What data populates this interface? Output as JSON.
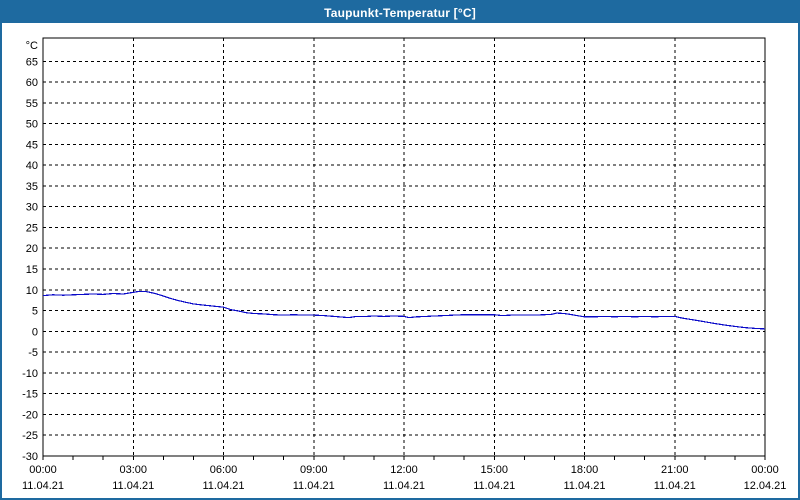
{
  "window": {
    "title": "Taupunkt-Temperatur [°C]"
  },
  "colors": {
    "frame": "#1e6aa0",
    "titlebar_bg": "#1e6aa0",
    "titlebar_text": "#ffffff",
    "plot_background": "#ffffff",
    "axis": "#000000",
    "grid": "#000000",
    "tick_text": "#000000",
    "line": "#0a0ac8"
  },
  "chart_data": {
    "type": "line",
    "title": "Taupunkt-Temperatur [°C]",
    "ylabel": "°C",
    "xlabel": "",
    "grid": true,
    "legend_position": "none",
    "ylim": [
      -30,
      70.6
    ],
    "ytick_step": 5,
    "yticks": [
      65,
      60,
      55,
      50,
      45,
      40,
      35,
      30,
      25,
      20,
      15,
      10,
      5,
      0,
      -5,
      -10,
      -15,
      -20,
      -25,
      -30
    ],
    "x_unit": "hours",
    "xlim": [
      0,
      24
    ],
    "minor_tick_every_hours": 1,
    "xticks": [
      {
        "hour": 0,
        "time": "00:00",
        "date": "11.04.21"
      },
      {
        "hour": 3,
        "time": "03:00",
        "date": "11.04.21"
      },
      {
        "hour": 6,
        "time": "06:00",
        "date": "11.04.21"
      },
      {
        "hour": 9,
        "time": "09:00",
        "date": "11.04.21"
      },
      {
        "hour": 12,
        "time": "12:00",
        "date": "11.04.21"
      },
      {
        "hour": 15,
        "time": "15:00",
        "date": "11.04.21"
      },
      {
        "hour": 18,
        "time": "18:00",
        "date": "11.04.21"
      },
      {
        "hour": 21,
        "time": "21:00",
        "date": "11.04.21"
      },
      {
        "hour": 24,
        "time": "00:00",
        "date": "12.04.21"
      }
    ],
    "series": [
      {
        "name": "Taupunkt-Temperatur",
        "color": "#0a0ac8",
        "points": [
          [
            0.0,
            8.6
          ],
          [
            0.33,
            8.8
          ],
          [
            0.67,
            8.7
          ],
          [
            1.0,
            8.8
          ],
          [
            1.33,
            8.9
          ],
          [
            1.67,
            9.0
          ],
          [
            2.0,
            8.9
          ],
          [
            2.33,
            9.1
          ],
          [
            2.67,
            9.0
          ],
          [
            3.0,
            9.4
          ],
          [
            3.17,
            9.6
          ],
          [
            3.42,
            9.6
          ],
          [
            3.67,
            9.2
          ],
          [
            3.83,
            8.9
          ],
          [
            4.0,
            8.5
          ],
          [
            4.25,
            7.9
          ],
          [
            4.5,
            7.4
          ],
          [
            4.75,
            7.0
          ],
          [
            5.0,
            6.6
          ],
          [
            5.25,
            6.4
          ],
          [
            5.5,
            6.2
          ],
          [
            5.75,
            6.0
          ],
          [
            6.0,
            5.8
          ],
          [
            6.25,
            5.2
          ],
          [
            6.5,
            4.9
          ],
          [
            6.75,
            4.5
          ],
          [
            7.0,
            4.3
          ],
          [
            7.33,
            4.2
          ],
          [
            7.67,
            4.0
          ],
          [
            8.0,
            3.9
          ],
          [
            8.33,
            4.0
          ],
          [
            8.67,
            3.9
          ],
          [
            9.0,
            3.9
          ],
          [
            9.33,
            3.8
          ],
          [
            9.67,
            3.6
          ],
          [
            10.0,
            3.4
          ],
          [
            10.17,
            3.3
          ],
          [
            10.42,
            3.6
          ],
          [
            10.75,
            3.6
          ],
          [
            11.0,
            3.7
          ],
          [
            11.33,
            3.6
          ],
          [
            11.67,
            3.7
          ],
          [
            12.0,
            3.6
          ],
          [
            12.17,
            3.3
          ],
          [
            12.42,
            3.5
          ],
          [
            12.75,
            3.6
          ],
          [
            13.0,
            3.7
          ],
          [
            13.33,
            3.8
          ],
          [
            13.67,
            3.9
          ],
          [
            14.0,
            4.0
          ],
          [
            14.33,
            4.0
          ],
          [
            14.67,
            4.0
          ],
          [
            15.0,
            4.0
          ],
          [
            15.25,
            3.8
          ],
          [
            15.58,
            3.9
          ],
          [
            16.0,
            3.9
          ],
          [
            16.33,
            3.9
          ],
          [
            16.67,
            4.0
          ],
          [
            16.92,
            4.1
          ],
          [
            17.08,
            4.4
          ],
          [
            17.33,
            4.3
          ],
          [
            17.58,
            4.0
          ],
          [
            17.83,
            3.7
          ],
          [
            18.0,
            3.5
          ],
          [
            18.33,
            3.5
          ],
          [
            18.67,
            3.6
          ],
          [
            19.0,
            3.5
          ],
          [
            19.33,
            3.6
          ],
          [
            19.67,
            3.5
          ],
          [
            20.0,
            3.6
          ],
          [
            20.33,
            3.5
          ],
          [
            20.67,
            3.6
          ],
          [
            21.0,
            3.6
          ],
          [
            21.25,
            3.2
          ],
          [
            21.5,
            2.9
          ],
          [
            21.75,
            2.6
          ],
          [
            22.0,
            2.3
          ],
          [
            22.33,
            1.9
          ],
          [
            22.67,
            1.5
          ],
          [
            23.0,
            1.2
          ],
          [
            23.33,
            0.9
          ],
          [
            23.67,
            0.7
          ],
          [
            24.0,
            0.6
          ]
        ]
      }
    ]
  }
}
